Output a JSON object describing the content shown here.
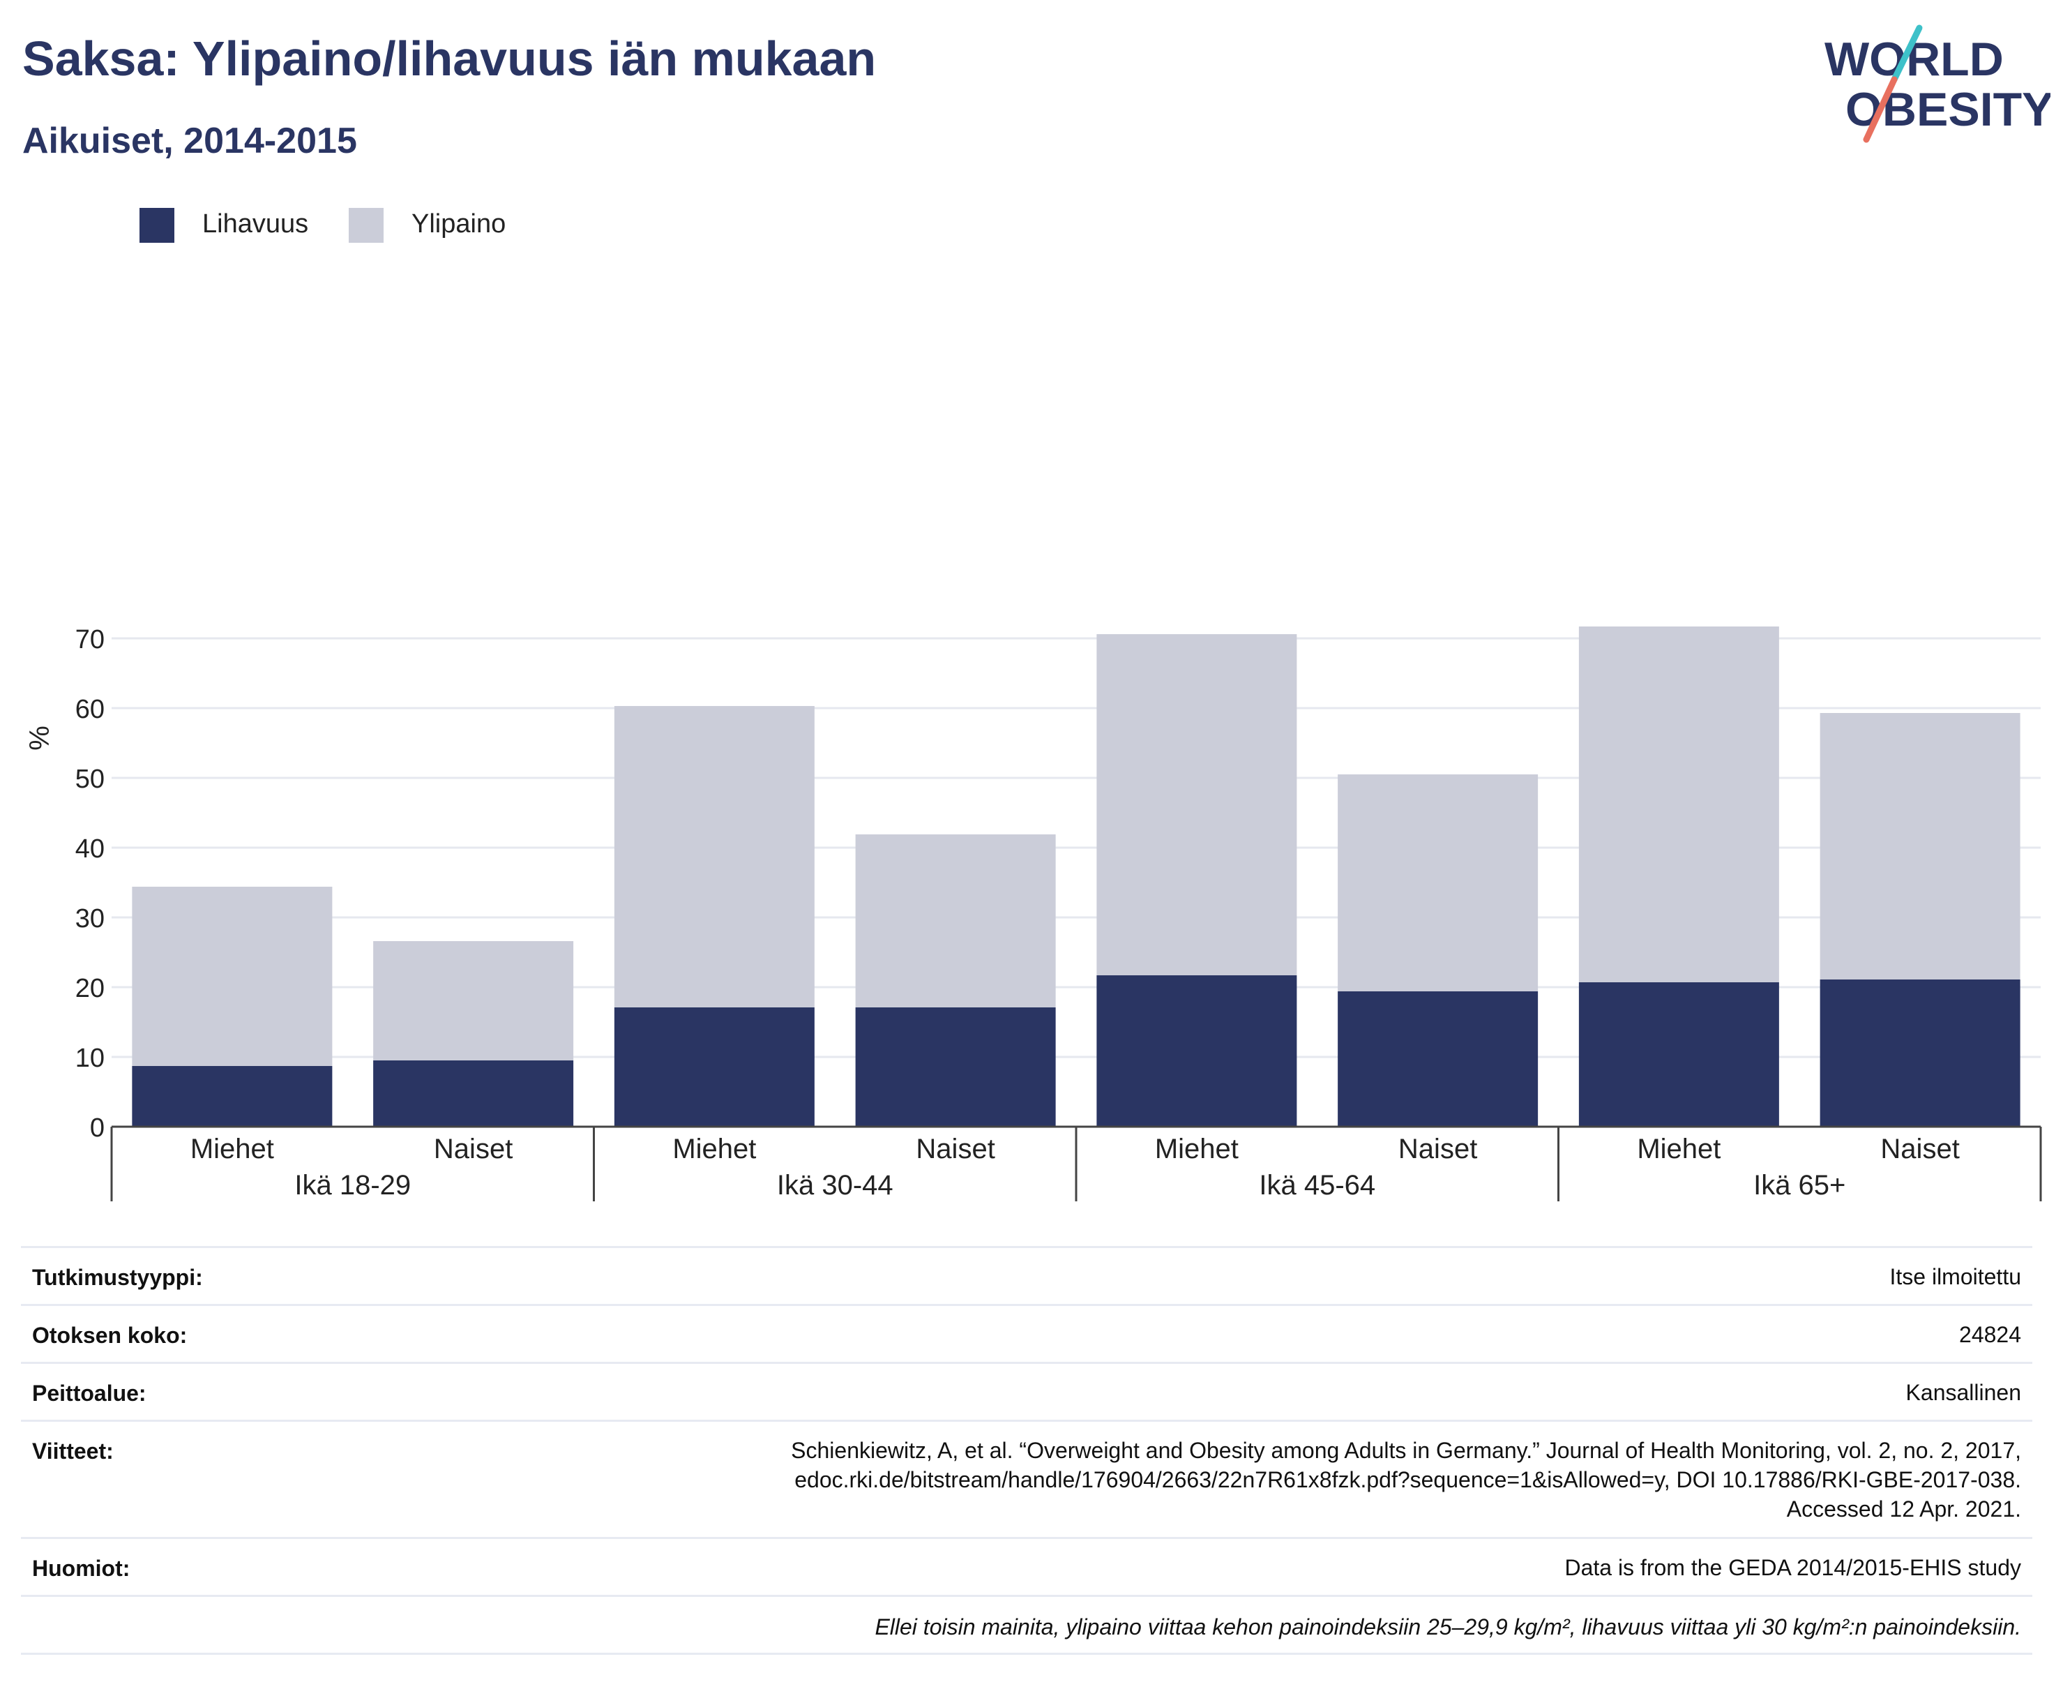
{
  "header": {
    "title": "Saksa: Ylipaino/lihavuus iän mukaan",
    "subtitle": "Aikuiset, 2014-2015",
    "logo_text": [
      "WORLD",
      "OBESITY"
    ]
  },
  "colors": {
    "title": "#2a3563",
    "lihavuus": "#2a3563",
    "ylipaino": "#cbcdd9",
    "logo_teal": "#3ec1c9",
    "logo_coral": "#e8705f"
  },
  "chart_data": {
    "type": "bar",
    "stacked": true,
    "ylabel": "%",
    "ylim": [
      0,
      75
    ],
    "yticks": [
      0,
      10,
      20,
      30,
      40,
      50,
      60,
      70
    ],
    "grid": true,
    "legend_position": "top-left",
    "groups": [
      "Ikä 18-29",
      "Ikä 30-44",
      "Ikä 45-64",
      "Ikä 65+"
    ],
    "categories": [
      "Miehet",
      "Naiset",
      "Miehet",
      "Naiset",
      "Miehet",
      "Naiset",
      "Miehet",
      "Naiset"
    ],
    "series": [
      {
        "name": "Lihavuus",
        "color": "#2a3563",
        "values": [
          8.7,
          9.5,
          17.1,
          17.1,
          21.7,
          19.4,
          20.7,
          21.1
        ]
      },
      {
        "name": "Ylipaino",
        "color": "#cbcdd9",
        "values": [
          25.7,
          17.1,
          43.2,
          24.8,
          48.9,
          31.1,
          51.0,
          38.2
        ]
      }
    ],
    "totals": [
      34.4,
      26.6,
      60.3,
      41.9,
      70.6,
      50.5,
      71.7,
      59.3
    ]
  },
  "meta": [
    {
      "key": "Tutkimustyyppi:",
      "value": [
        "Itse ilmoitettu"
      ]
    },
    {
      "key": "Otoksen koko:",
      "value": [
        "24824"
      ]
    },
    {
      "key": "Peittoalue:",
      "value": [
        "Kansallinen"
      ]
    },
    {
      "key": "Viitteet:",
      "value": [
        "Schienkiewitz, A, et al. “Overweight and Obesity among Adults in Germany.” Journal of Health Monitoring, vol. 2, no. 2, 2017,",
        "edoc.rki.de/bitstream/handle/176904/2663/22n7R61x8fzk.pdf?sequence=1&isAllowed=y, DOI 10.17886/RKI-GBE-2017-038.",
        "Accessed 12 Apr. 2021."
      ]
    },
    {
      "key": "Huomiot:",
      "value": [
        "Data is from the GEDA 2014/2015-EHIS study"
      ]
    }
  ],
  "footnote": "Ellei toisin mainita, ylipaino viittaa kehon painoindeksiin 25–29,9 kg/m², lihavuus viittaa yli 30 kg/m²:n painoindeksiin."
}
